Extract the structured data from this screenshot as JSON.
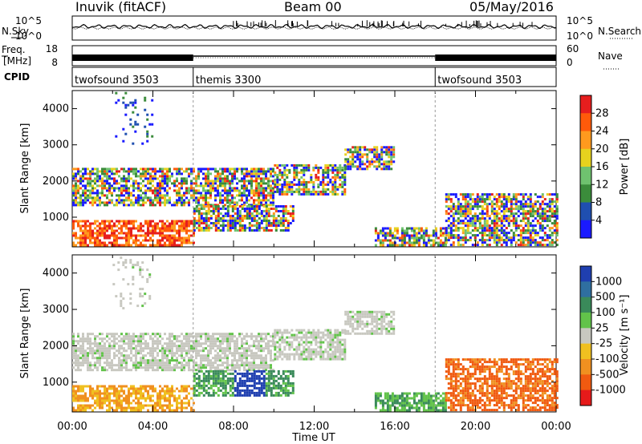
{
  "header": {
    "station": "Inuvik (fitACF)",
    "beam": "Beam 00",
    "date": "05/May/2016"
  },
  "chart_data": [
    {
      "type": "line",
      "title": "",
      "name_left": "N.Sky",
      "name_right": "N.Search",
      "ylabels_left": [
        "10^5",
        "10^0"
      ],
      "ylabels_right": [
        "10^5",
        "10^0"
      ],
      "series": [
        {
          "name": "N.Sky",
          "values": []
        },
        {
          "name": "N.Search",
          "values": []
        }
      ]
    },
    {
      "type": "line",
      "label_left": "Freq.",
      "units_left": "[MHz]",
      "ylim_left": [
        8,
        18
      ],
      "ylim_right": [
        0,
        60
      ],
      "label_right": "Nave",
      "series": [
        {
          "name": "Freq.",
          "values": []
        },
        {
          "name": "Nave",
          "values": []
        }
      ]
    },
    {
      "type": "table",
      "label": "CPID",
      "segments": [
        {
          "name": "twofsound 3503",
          "start_hour": 0,
          "end_hour": 6
        },
        {
          "name": "themis 3300",
          "start_hour": 6,
          "end_hour": 18
        },
        {
          "name": "twofsound 3503",
          "start_hour": 18,
          "end_hour": 24
        }
      ]
    },
    {
      "type": "heatmap",
      "variable": "Power",
      "ylabel": "Slant Range [km]",
      "xlabel": "Time UT",
      "xlim_hours": [
        0,
        24
      ],
      "ylim": [
        180,
        4500
      ],
      "yticks": [
        1000,
        2000,
        3000,
        4000
      ],
      "xticks": [
        "00:00",
        "04:00",
        "08:00",
        "12:00",
        "16:00",
        "20:00",
        "00:00"
      ],
      "colorbar": {
        "label": "Power [dB]",
        "ticks": [
          "4",
          "8",
          "12",
          "16",
          "20",
          "24",
          "28"
        ],
        "colors": [
          "#1a1aff",
          "#1f4fb0",
          "#3b8c3b",
          "#6fc26f",
          "#e6d21e",
          "#ff9a1e",
          "#ff5a0a",
          "#e61e1e"
        ]
      }
    },
    {
      "type": "heatmap",
      "variable": "Velocity",
      "ylabel": "Slant Range [km]",
      "xlabel": "Time UT",
      "xlim_hours": [
        0,
        24
      ],
      "ylim": [
        180,
        4500
      ],
      "yticks": [
        1000,
        2000,
        3000,
        4000
      ],
      "xticks": [
        "00:00",
        "04:00",
        "08:00",
        "12:00",
        "16:00",
        "20:00",
        "00:00"
      ],
      "colorbar": {
        "label": "Velocity [m s⁻¹]",
        "ticks": [
          "1000",
          "500",
          "100",
          "25",
          "-25",
          "-100",
          "-500",
          "-1000"
        ],
        "colors": [
          "#1f3fb0",
          "#2f6fa0",
          "#3a8a5a",
          "#62c34a",
          "#c8c8c0",
          "#f0c020",
          "#f09020",
          "#f05a10",
          "#e61a1a"
        ]
      }
    }
  ]
}
